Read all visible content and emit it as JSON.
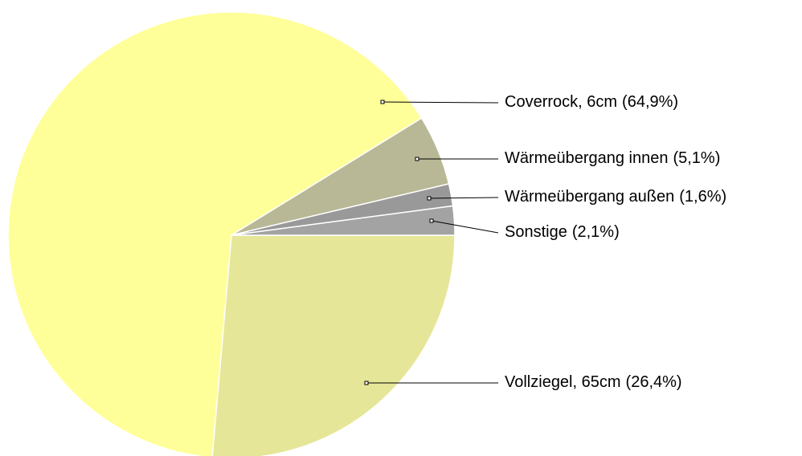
{
  "chart_data": {
    "type": "pie",
    "categories": [
      "Vollziegel, 65cm",
      "Coverrock, 6cm",
      "Wärmeübergang innen",
      "Wärmeübergang außen",
      "Sonstige"
    ],
    "values": [
      26.4,
      64.9,
      5.1,
      1.6,
      2.1
    ],
    "value_labels": [
      "(26,4%)",
      "(64,9%)",
      "(5,1%)",
      "(1,6%)",
      "(2,1%)"
    ],
    "colors": [
      "#e6e699",
      "#ffff99",
      "#b8b896",
      "#999999",
      "#a3a3a3"
    ]
  }
}
